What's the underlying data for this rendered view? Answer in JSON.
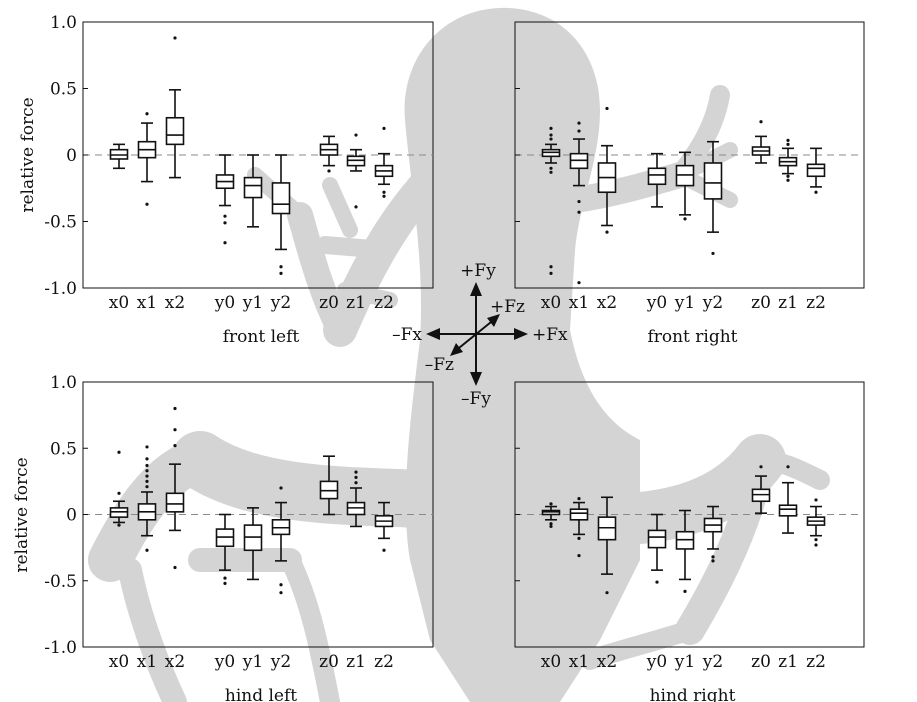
{
  "chart_data": [
    {
      "type": "box",
      "title": "front left",
      "ylabel": "relative force",
      "ylim": [
        -1.0,
        1.0
      ],
      "yticks": [
        "1.0",
        "0.5",
        "0",
        "-0.5",
        "-1.0"
      ],
      "zero_line": "dashed",
      "categories": [
        "x0",
        "x1",
        "x2",
        "y0",
        "y1",
        "y2",
        "z0",
        "z1",
        "z2"
      ],
      "boxes": [
        {
          "label": "x0",
          "whisker_low": -0.1,
          "q1": -0.03,
          "median": 0.0,
          "q3": 0.04,
          "whisker_high": 0.08,
          "outliers": []
        },
        {
          "label": "x1",
          "whisker_low": -0.2,
          "q1": -0.02,
          "median": 0.04,
          "q3": 0.1,
          "whisker_high": 0.24,
          "outliers": [
            0.31,
            -0.37
          ]
        },
        {
          "label": "x2",
          "whisker_low": -0.17,
          "q1": 0.08,
          "median": 0.15,
          "q3": 0.28,
          "whisker_high": 0.49,
          "outliers": [
            0.88
          ]
        },
        {
          "label": "y0",
          "whisker_low": -0.38,
          "q1": -0.25,
          "median": -0.2,
          "q3": -0.15,
          "whisker_high": 0.0,
          "outliers": [
            -0.46,
            -0.51,
            -0.66
          ]
        },
        {
          "label": "y1",
          "whisker_low": -0.54,
          "q1": -0.32,
          "median": -0.23,
          "q3": -0.17,
          "whisker_high": 0.0,
          "outliers": []
        },
        {
          "label": "y2",
          "whisker_low": -0.71,
          "q1": -0.44,
          "median": -0.37,
          "q3": -0.21,
          "whisker_high": 0.0,
          "outliers": [
            -0.84,
            -0.89
          ]
        },
        {
          "label": "z0",
          "whisker_low": -0.08,
          "q1": 0.0,
          "median": 0.04,
          "q3": 0.08,
          "whisker_high": 0.14,
          "outliers": [
            -0.12
          ]
        },
        {
          "label": "z1",
          "whisker_low": -0.12,
          "q1": -0.08,
          "median": -0.04,
          "q3": -0.01,
          "whisker_high": 0.04,
          "outliers": [
            0.15,
            -0.39
          ]
        },
        {
          "label": "z2",
          "whisker_low": -0.22,
          "q1": -0.16,
          "median": -0.12,
          "q3": -0.08,
          "whisker_high": 0.01,
          "outliers": [
            0.2,
            -0.28,
            -0.31
          ]
        }
      ]
    },
    {
      "type": "box",
      "title": "front right",
      "ylim": [
        -1.0,
        1.0
      ],
      "zero_line": "dashed",
      "categories": [
        "x0",
        "x1",
        "x2",
        "y0",
        "y1",
        "y2",
        "z0",
        "z1",
        "z2"
      ],
      "boxes": [
        {
          "label": "x0",
          "whisker_low": -0.06,
          "q1": -0.01,
          "median": 0.02,
          "q3": 0.04,
          "whisker_high": 0.08,
          "outliers": [
            0.2,
            0.15,
            0.12,
            -0.1,
            -0.13,
            -0.84,
            -0.89
          ]
        },
        {
          "label": "x1",
          "whisker_low": -0.23,
          "q1": -0.1,
          "median": -0.04,
          "q3": 0.01,
          "whisker_high": 0.12,
          "outliers": [
            0.24,
            0.18,
            -0.35,
            -0.43,
            -0.96
          ]
        },
        {
          "label": "x2",
          "whisker_low": -0.53,
          "q1": -0.28,
          "median": -0.17,
          "q3": -0.06,
          "whisker_high": 0.07,
          "outliers": [
            0.35,
            -0.58
          ]
        },
        {
          "label": "y0",
          "whisker_low": -0.39,
          "q1": -0.22,
          "median": -0.15,
          "q3": -0.1,
          "whisker_high": 0.01,
          "outliers": []
        },
        {
          "label": "y1",
          "whisker_low": -0.45,
          "q1": -0.23,
          "median": -0.15,
          "q3": -0.08,
          "whisker_high": 0.02,
          "outliers": [
            -0.48
          ]
        },
        {
          "label": "y2",
          "whisker_low": -0.58,
          "q1": -0.33,
          "median": -0.21,
          "q3": -0.06,
          "whisker_high": 0.1,
          "outliers": [
            -0.74
          ]
        },
        {
          "label": "z0",
          "whisker_low": -0.06,
          "q1": 0.0,
          "median": 0.03,
          "q3": 0.06,
          "whisker_high": 0.14,
          "outliers": [
            0.25
          ]
        },
        {
          "label": "z1",
          "whisker_low": -0.14,
          "q1": -0.08,
          "median": -0.05,
          "q3": -0.02,
          "whisker_high": 0.05,
          "outliers": [
            0.11,
            0.08,
            -0.16,
            -0.19
          ]
        },
        {
          "label": "z2",
          "whisker_low": -0.24,
          "q1": -0.16,
          "median": -0.1,
          "q3": -0.07,
          "whisker_high": 0.05,
          "outliers": [
            -0.28
          ]
        }
      ]
    },
    {
      "type": "box",
      "title": "hind left",
      "ylabel": "relative force",
      "ylim": [
        -1.0,
        1.0
      ],
      "yticks": [
        "1.0",
        "0.5",
        "0",
        "-0.5",
        "-1.0"
      ],
      "zero_line": "dashed",
      "categories": [
        "x0",
        "x1",
        "x2",
        "y0",
        "y1",
        "y2",
        "z0",
        "z1",
        "z2"
      ],
      "boxes": [
        {
          "label": "x0",
          "whisker_low": -0.06,
          "q1": -0.02,
          "median": 0.02,
          "q3": 0.05,
          "whisker_high": 0.1,
          "outliers": [
            0.47,
            0.16,
            -0.08
          ]
        },
        {
          "label": "x1",
          "whisker_low": -0.16,
          "q1": -0.04,
          "median": 0.02,
          "q3": 0.08,
          "whisker_high": 0.17,
          "outliers": [
            0.51,
            0.42,
            0.37,
            0.33,
            0.29,
            0.25,
            0.21,
            -0.27
          ]
        },
        {
          "label": "x2",
          "whisker_low": -0.12,
          "q1": 0.02,
          "median": 0.08,
          "q3": 0.16,
          "whisker_high": 0.38,
          "outliers": [
            0.8,
            0.64,
            0.52,
            -0.4
          ]
        },
        {
          "label": "y0",
          "whisker_low": -0.42,
          "q1": -0.24,
          "median": -0.17,
          "q3": -0.11,
          "whisker_high": 0.0,
          "outliers": [
            -0.48,
            -0.52
          ]
        },
        {
          "label": "y1",
          "whisker_low": -0.49,
          "q1": -0.27,
          "median": -0.17,
          "q3": -0.08,
          "whisker_high": 0.05,
          "outliers": []
        },
        {
          "label": "y2",
          "whisker_low": -0.35,
          "q1": -0.15,
          "median": -0.1,
          "q3": -0.04,
          "whisker_high": 0.09,
          "outliers": [
            0.2,
            -0.53,
            -0.59
          ]
        },
        {
          "label": "z0",
          "whisker_low": 0.0,
          "q1": 0.12,
          "median": 0.18,
          "q3": 0.25,
          "whisker_high": 0.44,
          "outliers": []
        },
        {
          "label": "z1",
          "whisker_low": -0.09,
          "q1": 0.0,
          "median": 0.05,
          "q3": 0.09,
          "whisker_high": 0.2,
          "outliers": [
            0.32,
            0.28,
            0.24
          ]
        },
        {
          "label": "z2",
          "whisker_low": -0.18,
          "q1": -0.09,
          "median": -0.05,
          "q3": -0.01,
          "whisker_high": 0.09,
          "outliers": [
            -0.27
          ]
        }
      ]
    },
    {
      "type": "box",
      "title": "hind right",
      "ylim": [
        -1.0,
        1.0
      ],
      "zero_line": "dashed",
      "categories": [
        "x0",
        "x1",
        "x2",
        "y0",
        "y1",
        "y2",
        "z0",
        "z1",
        "z2"
      ],
      "boxes": [
        {
          "label": "x0",
          "whisker_low": -0.04,
          "q1": 0.0,
          "median": 0.02,
          "q3": 0.03,
          "whisker_high": 0.06,
          "outliers": [
            0.08,
            -0.07,
            -0.09
          ]
        },
        {
          "label": "x1",
          "whisker_low": -0.15,
          "q1": -0.04,
          "median": 0.01,
          "q3": 0.04,
          "whisker_high": 0.09,
          "outliers": [
            0.12,
            -0.18,
            -0.31
          ]
        },
        {
          "label": "x2",
          "whisker_low": -0.45,
          "q1": -0.19,
          "median": -0.1,
          "q3": -0.02,
          "whisker_high": 0.13,
          "outliers": [
            -0.59
          ]
        },
        {
          "label": "y0",
          "whisker_low": -0.42,
          "q1": -0.25,
          "median": -0.17,
          "q3": -0.12,
          "whisker_high": 0.0,
          "outliers": [
            -0.51
          ]
        },
        {
          "label": "y1",
          "whisker_low": -0.49,
          "q1": -0.26,
          "median": -0.19,
          "q3": -0.13,
          "whisker_high": 0.03,
          "outliers": [
            -0.58
          ]
        },
        {
          "label": "y2",
          "whisker_low": -0.26,
          "q1": -0.13,
          "median": -0.08,
          "q3": -0.03,
          "whisker_high": 0.06,
          "outliers": [
            -0.32,
            -0.35
          ]
        },
        {
          "label": "z0",
          "whisker_low": 0.01,
          "q1": 0.1,
          "median": 0.15,
          "q3": 0.19,
          "whisker_high": 0.29,
          "outliers": [
            0.36
          ]
        },
        {
          "label": "z1",
          "whisker_low": -0.14,
          "q1": -0.01,
          "median": 0.04,
          "q3": 0.07,
          "whisker_high": 0.24,
          "outliers": [
            0.36
          ]
        },
        {
          "label": "z2",
          "whisker_low": -0.16,
          "q1": -0.08,
          "median": -0.05,
          "q3": -0.02,
          "whisker_high": 0.06,
          "outliers": [
            0.11,
            -0.19,
            -0.23
          ]
        }
      ]
    }
  ],
  "axes_legend": {
    "fy_pos": "+Fy",
    "fy_neg": "–Fy",
    "fx_pos": "+Fx",
    "fx_neg": "–Fx",
    "fz_pos": "+Fz",
    "fz_neg": "–Fz"
  },
  "colors": {
    "silhouette": "#d4d4d4",
    "ink": "#111111",
    "zero_line": "#8a8a8a"
  }
}
